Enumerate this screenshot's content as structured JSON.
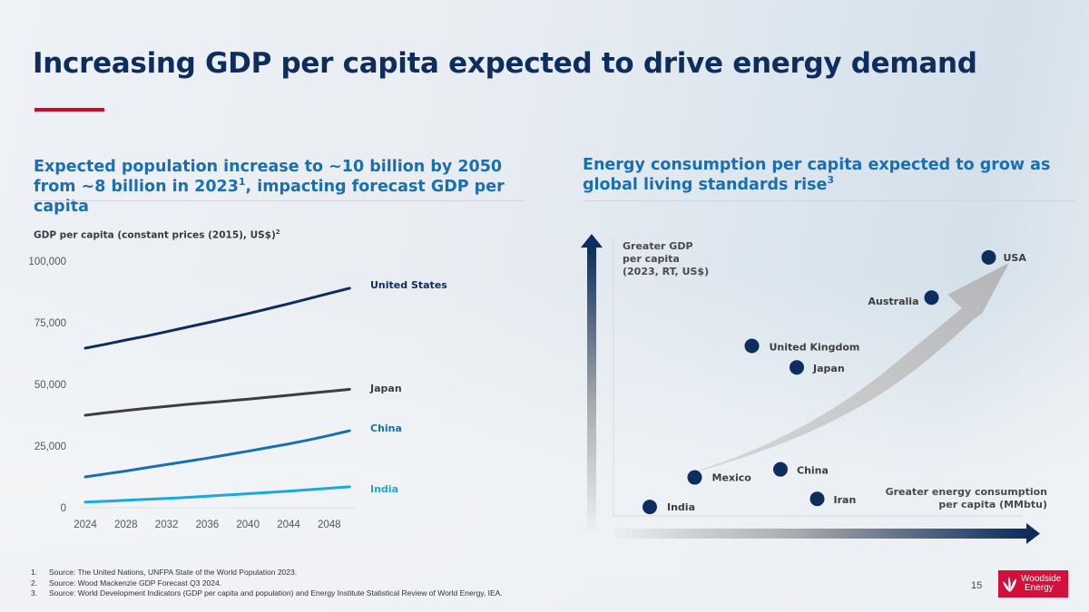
{
  "slide": {
    "title": "Increasing GDP per capita expected to drive energy demand",
    "accent_color": "#c8102e",
    "page_number": "15"
  },
  "left": {
    "subheading_main": "Expected population increase to ~10 billion by 2050 from ~8 billion in 2023",
    "subheading_sup": "1",
    "subheading_tail": ", impacting forecast GDP per capita",
    "chart_label": "GDP per capita (constant prices (2015), US$)",
    "chart_label_sup": "2"
  },
  "right": {
    "subheading_main": "Energy consumption per capita expected to grow as global living standards rise",
    "subheading_sup": "3"
  },
  "chart_data": [
    {
      "type": "line",
      "title": "GDP per capita (constant prices (2015), US$)",
      "xlabel": "",
      "ylabel": "",
      "x": [
        2024,
        2026,
        2028,
        2030,
        2032,
        2034,
        2036,
        2038,
        2040,
        2042,
        2044,
        2046,
        2048,
        2050
      ],
      "x_ticks": [
        "2024",
        "2028",
        "2032",
        "2036",
        "2040",
        "2044",
        "2048"
      ],
      "y_ticks": [
        "0",
        "25,000",
        "50,000",
        "75,000",
        "100,000"
      ],
      "ylim": [
        0,
        100000
      ],
      "grid": false,
      "legend": "inline-right",
      "series": [
        {
          "name": "United States",
          "color": "#0c2d5e",
          "values": [
            64700,
            66300,
            68000,
            69600,
            71400,
            73200,
            75000,
            76800,
            78700,
            80700,
            82700,
            84800,
            86900,
            89000
          ]
        },
        {
          "name": "Japan",
          "color": "#3d3d3d",
          "values": [
            37500,
            38500,
            39400,
            40300,
            41100,
            41900,
            42600,
            43300,
            44000,
            44800,
            45600,
            46400,
            47200,
            48000
          ]
        },
        {
          "name": "China",
          "color": "#1a6fb3",
          "values": [
            12500,
            13700,
            14900,
            16200,
            17500,
            18800,
            20100,
            21500,
            22900,
            24400,
            25900,
            27500,
            29300,
            31200
          ]
        },
        {
          "name": "India",
          "color": "#19a8e0",
          "values": [
            2300,
            2600,
            3000,
            3400,
            3800,
            4200,
            4700,
            5200,
            5700,
            6200,
            6700,
            7300,
            7900,
            8500
          ]
        }
      ]
    },
    {
      "type": "scatter",
      "title": "Energy consumption per capita vs GDP per capita",
      "xlabel": "Greater energy consumption per capita (MMbtu)",
      "ylabel": "Greater GDP per capita (2023, RT, US$)",
      "ylabel_lines": [
        "Greater GDP",
        "per capita",
        "(2023, RT, US$)"
      ],
      "xlabel_lines": [
        "Greater energy consumption",
        "per capita (MMbtu)"
      ],
      "axis_scale": "relative (no tick values shown)",
      "x_range": [
        0,
        1
      ],
      "y_range": [
        0,
        1
      ],
      "point_color": "#0c2d5e",
      "trend_arrow": "upward curved grey arrow from low-left to top-right",
      "points": [
        {
          "name": "USA",
          "x": 0.91,
          "y": 0.96
        },
        {
          "name": "Australia",
          "x": 0.77,
          "y": 0.81
        },
        {
          "name": "United Kingdom",
          "x": 0.33,
          "y": 0.63
        },
        {
          "name": "Japan",
          "x": 0.44,
          "y": 0.55
        },
        {
          "name": "China",
          "x": 0.4,
          "y": 0.17
        },
        {
          "name": "Mexico",
          "x": 0.19,
          "y": 0.14
        },
        {
          "name": "Iran",
          "x": 0.49,
          "y": 0.06
        },
        {
          "name": "India",
          "x": 0.08,
          "y": 0.03
        }
      ]
    }
  ],
  "footnotes": [
    {
      "num": "1.",
      "text": "Source: The United Nations, UNFPA State of the World Population 2023."
    },
    {
      "num": "2.",
      "text": "Source: Wood Mackenzie GDP Forecast Q3 2024."
    },
    {
      "num": "3.",
      "text": "Source: World Development Indicators (GDP per capita and population) and Energy Institute Statistical Review of World Energy, IEA."
    }
  ],
  "logo": {
    "line1": "Woodside",
    "line2": "Energy",
    "color": "#d50f3b"
  }
}
